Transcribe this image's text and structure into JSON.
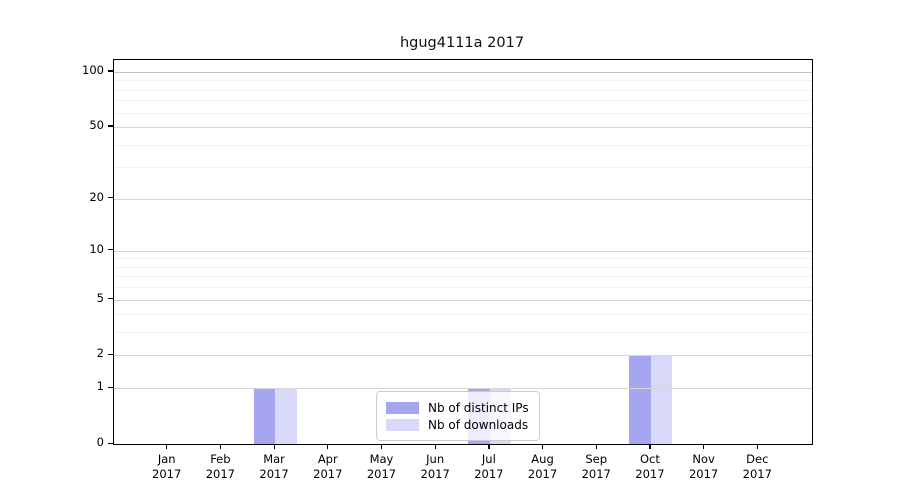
{
  "title": "hgug4111a 2017",
  "colors": {
    "bar_distinct_ips": "#a5a5f0",
    "bar_downloads": "#d8d8f8",
    "grid_major": "#d6d6d6",
    "grid_major_top": "#c3c3c3",
    "grid_minor": "#f1f1f1",
    "axis": "#000000",
    "legend_border": "#cccccc"
  },
  "chart_data": {
    "type": "bar",
    "title": "hgug4111a 2017",
    "categories": [
      "Jan",
      "Feb",
      "Mar",
      "Apr",
      "May",
      "Jun",
      "Jul",
      "Aug",
      "Sep",
      "Oct",
      "Nov",
      "Dec"
    ],
    "year": "2017",
    "series": [
      {
        "name": "Nb of distinct IPs",
        "color": "#a5a5f0",
        "values": [
          0,
          0,
          1,
          0,
          0,
          0,
          1,
          0,
          0,
          2,
          0,
          0
        ]
      },
      {
        "name": "Nb of downloads",
        "color": "#d8d8f8",
        "values": [
          0,
          0,
          1,
          0,
          0,
          0,
          1,
          0,
          0,
          2,
          0,
          0
        ]
      }
    ],
    "yscale": "log1p",
    "yticks": [
      0,
      1,
      2,
      5,
      10,
      20,
      50,
      100
    ],
    "minor_yticks": [
      3,
      4,
      6,
      7,
      8,
      9,
      30,
      40,
      60,
      70,
      80,
      90
    ],
    "ylim": [
      0,
      116
    ],
    "grid": true,
    "grid_above_bars": true,
    "legend_position": "lower-center-inside"
  }
}
